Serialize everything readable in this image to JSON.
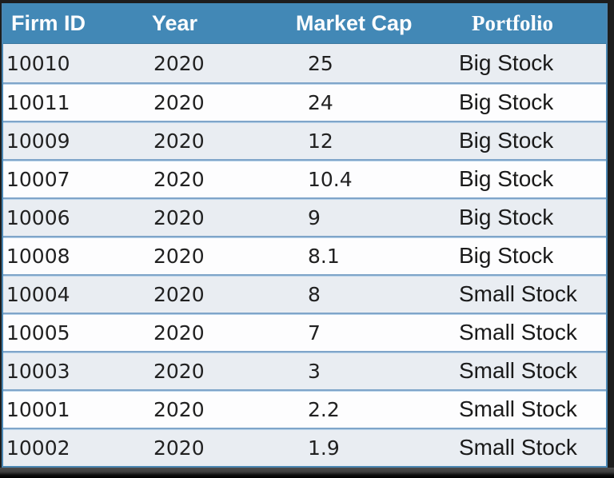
{
  "colors": {
    "frame_dark": "#1d1d1d",
    "header_bg": "#4288b6",
    "header_text": "#fcfdfe",
    "row_shaded_bg": "#e9edf2",
    "row_white_bg": "#fdfdfe",
    "row_separator": "#7fa5c9",
    "row_separator_light": "#bad4ea",
    "table_border": "#4a86b2",
    "cell_text": "#212121",
    "shadow_top": "#4c4c4c",
    "shadow_bottom": "#000000"
  },
  "table": {
    "columns": [
      {
        "key": "firm_id",
        "label": "Firm ID"
      },
      {
        "key": "year",
        "label": "Year"
      },
      {
        "key": "market_cap",
        "label": "Market Cap"
      },
      {
        "key": "portfolio",
        "label": "Portfolio"
      }
    ],
    "rows": [
      {
        "firm_id": "10010",
        "year": "2020",
        "market_cap": "25",
        "portfolio": "Big Stock"
      },
      {
        "firm_id": "10011",
        "year": "2020",
        "market_cap": "24",
        "portfolio": "Big Stock"
      },
      {
        "firm_id": "10009",
        "year": "2020",
        "market_cap": "12",
        "portfolio": "Big Stock"
      },
      {
        "firm_id": "10007",
        "year": "2020",
        "market_cap": "10.4",
        "portfolio": "Big Stock"
      },
      {
        "firm_id": "10006",
        "year": "2020",
        "market_cap": "9",
        "portfolio": "Big Stock"
      },
      {
        "firm_id": "10008",
        "year": "2020",
        "market_cap": "8.1",
        "portfolio": "Big Stock"
      },
      {
        "firm_id": "10004",
        "year": "2020",
        "market_cap": "8",
        "portfolio": "Small Stock"
      },
      {
        "firm_id": "10005",
        "year": "2020",
        "market_cap": "7",
        "portfolio": "Small Stock"
      },
      {
        "firm_id": "10003",
        "year": "2020",
        "market_cap": "3",
        "portfolio": "Small Stock"
      },
      {
        "firm_id": "10001",
        "year": "2020",
        "market_cap": "2.2",
        "portfolio": "Small Stock"
      },
      {
        "firm_id": "10002",
        "year": "2020",
        "market_cap": "1.9",
        "portfolio": "Small Stock"
      }
    ]
  },
  "chart_data": {
    "type": "table",
    "columns": [
      "Firm ID",
      "Year",
      "Market Cap",
      "Portfolio"
    ],
    "rows": [
      [
        "10010",
        2020,
        25,
        "Big Stock"
      ],
      [
        "10011",
        2020,
        24,
        "Big Stock"
      ],
      [
        "10009",
        2020,
        12,
        "Big Stock"
      ],
      [
        "10007",
        2020,
        10.4,
        "Big Stock"
      ],
      [
        "10006",
        2020,
        9,
        "Big Stock"
      ],
      [
        "10008",
        2020,
        8.1,
        "Big Stock"
      ],
      [
        "10004",
        2020,
        8,
        "Small Stock"
      ],
      [
        "10005",
        2020,
        7,
        "Small Stock"
      ],
      [
        "10003",
        2020,
        3,
        "Small Stock"
      ],
      [
        "10001",
        2020,
        2.2,
        "Small Stock"
      ],
      [
        "10002",
        2020,
        1.9,
        "Small Stock"
      ]
    ],
    "notes": "Firms sorted by descending market cap; top 6 labeled Big Stock, bottom 5 Small Stock; shaded/white alternating rows"
  }
}
